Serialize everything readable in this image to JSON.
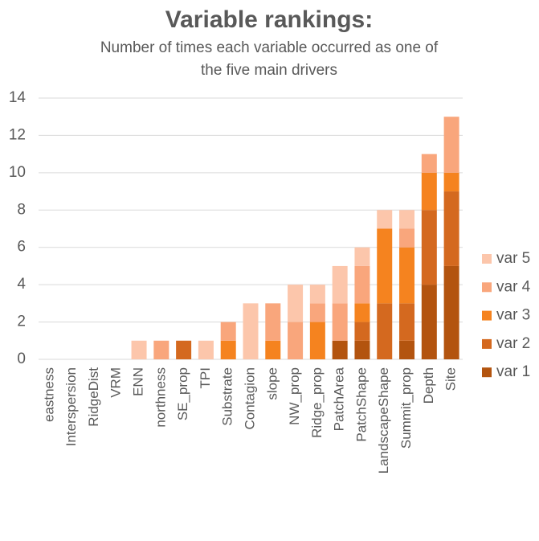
{
  "chart_data": {
    "type": "stacked_bar",
    "title": "Variable rankings:",
    "subtitle": [
      "Number of times each variable occurred as one of",
      "the five main drivers"
    ],
    "categories": [
      "eastness",
      "Interspersion",
      "RidgeDist",
      "VRM",
      "ENN",
      "northness",
      "SE_prop",
      "TPI",
      "Substrate",
      "Contagion",
      "slope",
      "NW_prop",
      "Ridge_prop",
      "PatchArea",
      "PatchShape",
      "LandscapeShape",
      "Summit_prop",
      "Depth",
      "Site"
    ],
    "series": [
      {
        "name": "var 1",
        "color": "#b3540f",
        "values": [
          0,
          0,
          0,
          0,
          0,
          0,
          0,
          0,
          0,
          0,
          0,
          0,
          0,
          1,
          1,
          0,
          1,
          4,
          5
        ]
      },
      {
        "name": "var 2",
        "color": "#d4691f",
        "values": [
          0,
          0,
          0,
          0,
          0,
          0,
          1,
          0,
          0,
          0,
          0,
          0,
          0,
          0,
          1,
          3,
          2,
          4,
          4
        ]
      },
      {
        "name": "var 3",
        "color": "#f5831f",
        "values": [
          0,
          0,
          0,
          0,
          0,
          0,
          0,
          0,
          1,
          0,
          1,
          0,
          2,
          0,
          1,
          4,
          3,
          2,
          1
        ]
      },
      {
        "name": "var 4",
        "color": "#f9a67c",
        "values": [
          0,
          0,
          0,
          0,
          0,
          1,
          0,
          0,
          1,
          0,
          2,
          2,
          1,
          2,
          2,
          0,
          1,
          1,
          3
        ]
      },
      {
        "name": "var 5",
        "color": "#fcc6ab",
        "values": [
          0,
          0,
          0,
          0,
          1,
          0,
          0,
          1,
          0,
          3,
          0,
          2,
          1,
          2,
          1,
          1,
          1,
          0,
          0
        ]
      }
    ],
    "ylim": [
      0,
      14
    ],
    "yticks": [
      0,
      2,
      4,
      6,
      8,
      10,
      12,
      14
    ],
    "grid": true,
    "legend": "right"
  }
}
